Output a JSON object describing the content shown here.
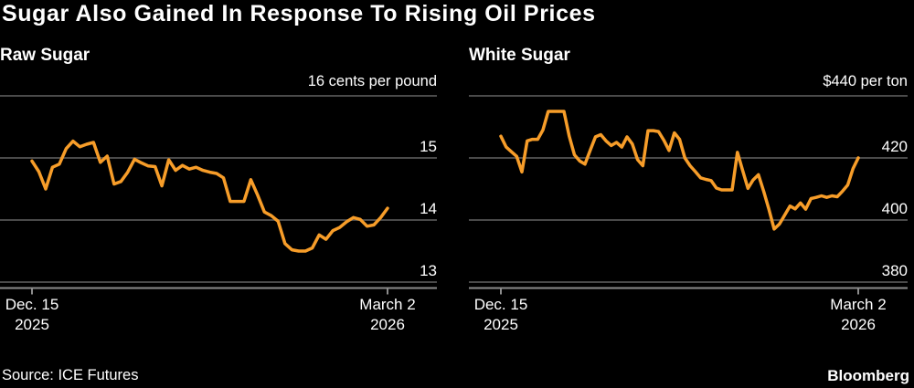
{
  "header": {
    "title": "Sugar Also Gained In Response To Rising Oil Prices"
  },
  "footer": {
    "source": "Source: ICE Futures",
    "brand": "Bloomberg"
  },
  "colors": {
    "background": "#000000",
    "text": "#ffffff",
    "line": "#f79d29",
    "gridline": "#4a4a4a",
    "axis": "#8c8c8c"
  },
  "chart_data": [
    {
      "type": "line",
      "title": "Raw Sugar",
      "unit_label": "16 cents per pound",
      "y_axis": {
        "max": 16,
        "min": 13,
        "gridline_values": [
          16,
          15,
          14,
          13
        ],
        "tick_labels": [
          "15",
          "14",
          "13"
        ]
      },
      "x_axis": {
        "ticks": [
          {
            "line1": "Dec. 15",
            "line2": "2025"
          },
          {
            "line1": "March 2",
            "line2": "2026"
          }
        ]
      },
      "series": [
        {
          "name": "Raw Sugar (cents per pound)",
          "values": [
            14.95,
            14.78,
            14.5,
            14.85,
            14.9,
            15.15,
            15.27,
            15.18,
            15.22,
            15.25,
            14.93,
            15.03,
            14.58,
            14.62,
            14.77,
            14.98,
            14.92,
            14.87,
            14.86,
            14.55,
            14.97,
            14.8,
            14.88,
            14.82,
            14.85,
            14.8,
            14.77,
            14.75,
            14.68,
            14.3,
            14.3,
            14.3,
            14.65,
            14.4,
            14.13,
            14.07,
            13.98,
            13.62,
            13.52,
            13.5,
            13.5,
            13.55,
            13.76,
            13.69,
            13.83,
            13.88,
            13.97,
            14.04,
            14.01,
            13.9,
            13.92,
            14.04,
            14.19
          ]
        }
      ]
    },
    {
      "type": "line",
      "title": "White Sugar",
      "unit_label": "$440 per ton",
      "y_axis": {
        "max": 440,
        "min": 380,
        "gridline_values": [
          440,
          420,
          400,
          380
        ],
        "tick_labels": [
          "420",
          "400",
          "380"
        ]
      },
      "x_axis": {
        "ticks": [
          {
            "line1": "Dec. 15",
            "line2": "2025"
          },
          {
            "line1": "March 2",
            "line2": "2026"
          }
        ]
      },
      "series": [
        {
          "name": "White Sugar ($ per ton)",
          "values": [
            427.0,
            423.5,
            422.0,
            420.5,
            415.5,
            425.5,
            426.0,
            426.0,
            429.0,
            435.0,
            435.0,
            435.0,
            435.0,
            427.0,
            421.0,
            419.0,
            418.0,
            422.5,
            426.8,
            427.5,
            425.5,
            424.0,
            425.0,
            423.5,
            426.8,
            424.5,
            419.5,
            417.5,
            428.8,
            428.8,
            428.5,
            425.7,
            422.4,
            428.1,
            426.0,
            420.0,
            417.5,
            415.6,
            413.6,
            413.1,
            412.7,
            410.3,
            409.7,
            409.7,
            409.7,
            421.8,
            416.0,
            410.2,
            412.9,
            414.6,
            409.3,
            403.4,
            397.1,
            398.7,
            401.6,
            404.5,
            403.6,
            405.5,
            403.5,
            406.9,
            407.3,
            407.8,
            407.3,
            407.8,
            407.5,
            409.3,
            411.3,
            416.6,
            420.0
          ]
        }
      ]
    }
  ]
}
